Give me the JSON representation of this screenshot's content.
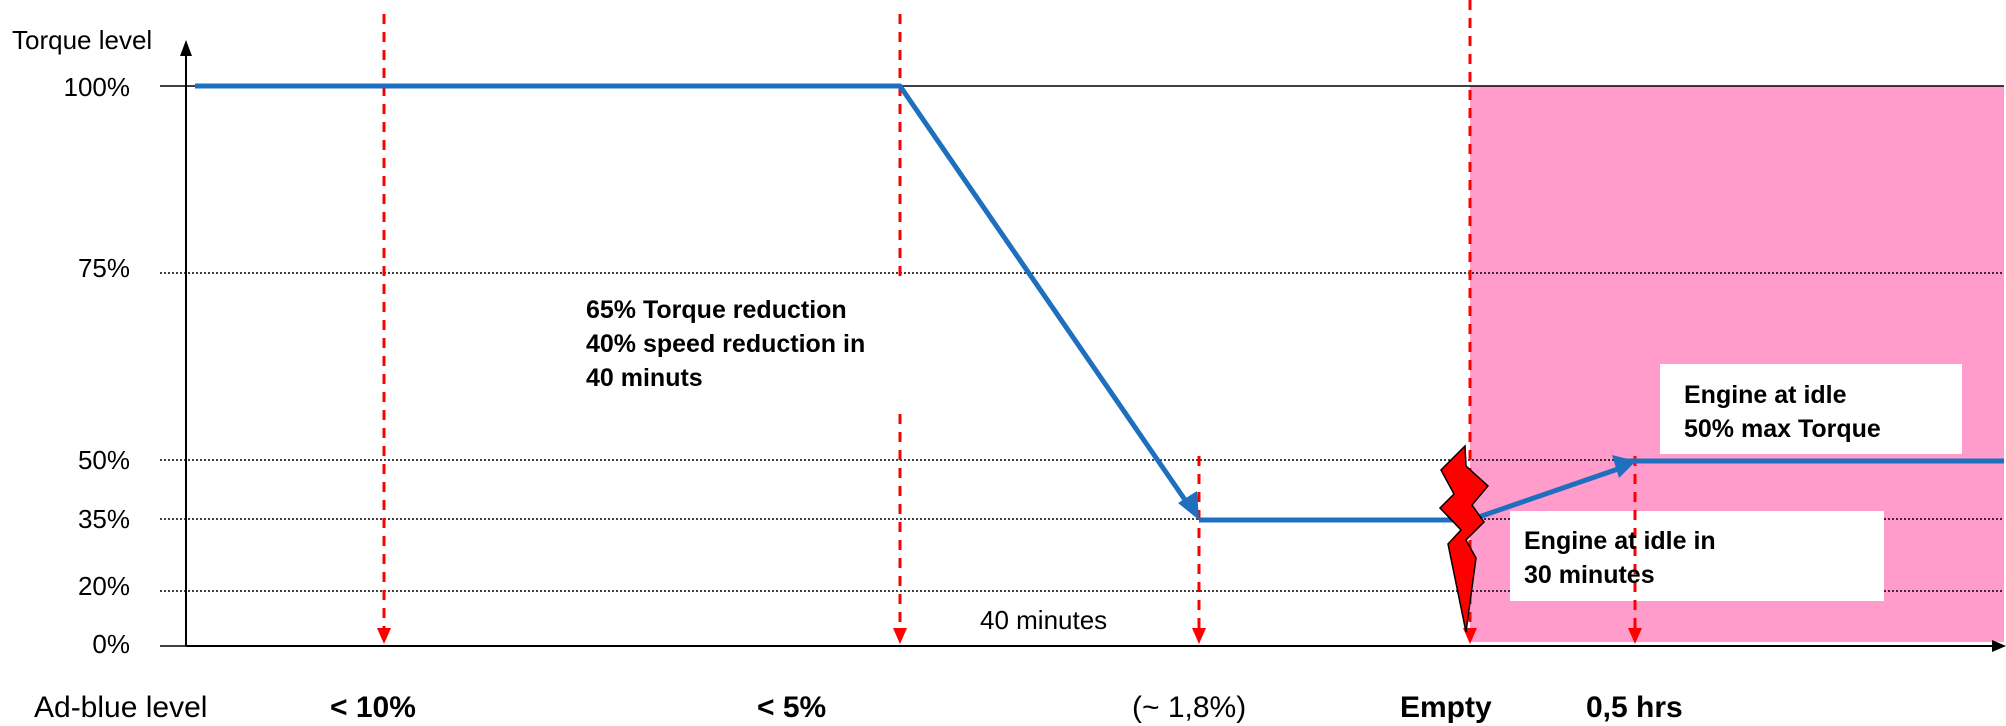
{
  "chart_data": {
    "type": "line",
    "ylabel": "Torque level",
    "y_ticks": [
      "100%",
      "75%",
      "50%",
      "35%",
      "20%",
      "0%"
    ],
    "y_tick_values": [
      100,
      75,
      50,
      35,
      20,
      0
    ],
    "ylim": [
      0,
      100
    ],
    "xlabel": "Ad-blue level",
    "x_categories": [
      "< 10%",
      "< 5%",
      "(~ 1,8%)",
      "Empty",
      "0,5 hrs"
    ],
    "series": [
      {
        "values_by_category": {
          "start": 100,
          "< 10%": 100,
          "< 5%": 100,
          "(~ 1,8%)": 35,
          "Empty": 35,
          "0,5 hrs": 50,
          "end": 50
        }
      }
    ],
    "grid": "dotted horizontal at 75%, 50%, 35%, 20%",
    "shaded_region": {
      "from": "Empty",
      "to": "end",
      "color": "#ff9ccc"
    },
    "annotations": {
      "reduction": [
        "65% Torque reduction",
        "40% speed reduction in",
        "40 minuts"
      ],
      "duration": "40 minutes",
      "idle_max": [
        "Engine at idle",
        "50% max Torque"
      ],
      "idle_30": [
        "Engine at idle in",
        "30 minutes"
      ]
    },
    "colors": {
      "line": "#1f6fbf",
      "markers": "#ff0000",
      "shaded": "#ff9ccc",
      "lightning": "#ff0000"
    }
  }
}
